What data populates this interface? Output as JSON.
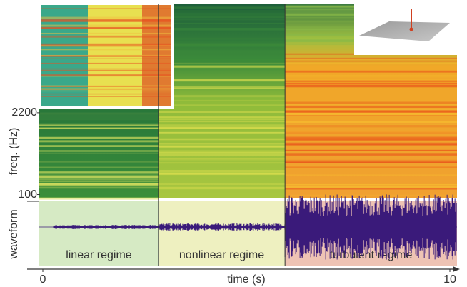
{
  "chart_data": {
    "type": "spectrogram",
    "xlabel": "time (s)",
    "ylabel": "freq. (Hz)",
    "panel_label": "waveform",
    "xlim": [
      0,
      10
    ],
    "xticks": [
      0,
      10
    ],
    "ylim": [
      0,
      5000
    ],
    "yticks": [
      100,
      2200
    ],
    "regimes": [
      {
        "name": "linear regime",
        "start": 0,
        "end": 2.84,
        "color": "#d6eac4",
        "spectrum": "#1f6b3a",
        "wave_amp": 0.06
      },
      {
        "name": "nonlinear regime",
        "start": 2.84,
        "end": 5.95,
        "color": "#eef0c0",
        "spectrum": "#a9c93a",
        "wave_amp": 0.1
      },
      {
        "name": "turbulent regime",
        "start": 5.95,
        "end": 10,
        "color": "#eec3b4",
        "spectrum": "#f0a020",
        "wave_amp": 0.9
      }
    ]
  }
}
